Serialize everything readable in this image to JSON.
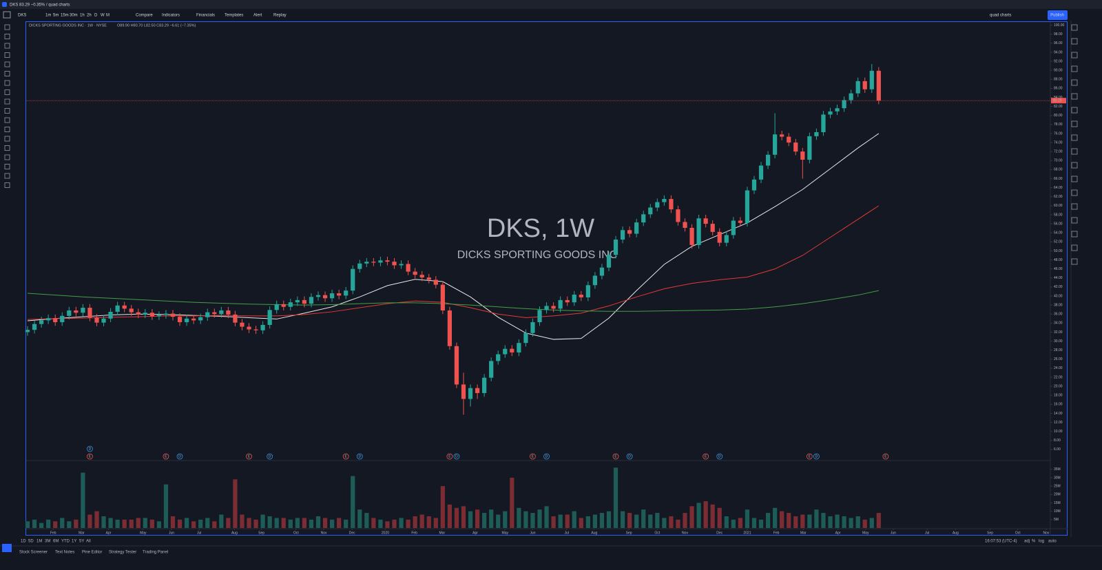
{
  "header": {
    "tab": "DKS 83.29 −0.35% / quad charts",
    "symbol": "DKS",
    "intervals": [
      "1m",
      "5m",
      "15m",
      "30m",
      "1h",
      "2h",
      "D",
      "W",
      "M"
    ],
    "tools": [
      "Compare",
      "Indicators",
      "Financials",
      "Templates",
      "Alert",
      "Replay"
    ],
    "layout": "quad charts",
    "publish": "Publish"
  },
  "footer": {
    "ranges": [
      "1D",
      "5D",
      "1M",
      "3M",
      "6M",
      "YTD",
      "1Y",
      "5Y",
      "All"
    ],
    "clock": "16:07:53 (UTC-4)",
    "scale": [
      "adj",
      "%",
      "log",
      "auto"
    ],
    "tabs": [
      "Stock Screener",
      "Text Notes",
      "Pine Editor",
      "Strategy Tester",
      "Trading Panel"
    ]
  },
  "chart_data": {
    "type": "candlestick",
    "title": "DICKS SPORTING GOODS INC · 1W · NYSE",
    "ohlc_legend": "O89.90 H90.70 L82.50 C83.29 −6.61 (−7.35%)",
    "watermark": "DKS, 1W",
    "watermark_name": "DICKS SPORTING GOODS INC",
    "up_color": "#26a69a",
    "down_color": "#ef5350",
    "open": [
      32.0,
      32.5,
      33.8,
      34.6,
      35.1,
      34.2,
      35.6,
      36.8,
      36.3,
      37.4,
      35.2,
      34.1,
      35.0,
      36.5,
      37.9,
      37.2,
      36.4,
      35.9,
      36.3,
      35.5,
      35.8,
      36.1,
      35.4,
      34.2,
      35.0,
      34.6,
      35.3,
      36.4,
      36.0,
      36.8,
      35.9,
      34.1,
      33.2,
      32.6,
      32.4,
      33.6,
      36.9,
      38.2,
      37.6,
      38.6,
      39.1,
      38.3,
      39.8,
      40.2,
      39.5,
      40.6,
      40.1,
      41.2,
      46.0,
      47.2,
      47.6,
      47.4,
      47.9,
      47.6,
      46.8,
      47.1,
      45.4,
      44.7,
      44.1,
      43.6,
      42.5,
      36.8,
      28.9,
      20.4,
      17.2,
      19.6,
      18.5,
      21.9,
      25.6,
      27.1,
      28.3,
      27.5,
      29.6,
      31.8,
      34.2,
      36.9,
      37.8,
      37.2,
      39.1,
      38.6,
      40.3,
      39.7,
      42.4,
      44.5,
      46.3,
      49.1,
      52.5,
      54.6,
      53.8,
      56.3,
      58.1,
      59.6,
      60.8,
      61.5,
      59.2,
      56.4,
      55.1,
      51.3,
      57.2,
      56.0,
      54.2,
      51.8,
      53.5,
      56.7,
      56.2,
      63.4,
      65.8,
      68.9,
      71.3,
      75.8,
      75.3,
      74.0,
      72.0,
      70.2,
      75.4,
      76.3,
      80.2,
      80.9,
      81.6,
      83.4,
      84.9,
      87.6,
      85.8,
      89.9
    ],
    "high": [
      33.3,
      34.6,
      35.4,
      35.9,
      35.9,
      36.4,
      37.6,
      37.6,
      38.2,
      38.2,
      36.0,
      35.8,
      37.3,
      38.7,
      38.7,
      38.0,
      37.2,
      37.1,
      37.1,
      36.6,
      36.9,
      36.9,
      36.2,
      35.8,
      35.8,
      36.1,
      37.2,
      37.2,
      37.6,
      37.6,
      36.7,
      34.9,
      34.0,
      33.4,
      34.4,
      37.7,
      39.0,
      39.0,
      39.4,
      39.9,
      39.9,
      40.6,
      41.0,
      41.0,
      41.4,
      41.4,
      42.0,
      46.8,
      48.0,
      48.4,
      48.4,
      48.7,
      48.7,
      48.4,
      47.9,
      47.9,
      46.2,
      45.5,
      44.9,
      44.4,
      43.3,
      37.6,
      29.7,
      23.0,
      20.4,
      20.4,
      22.7,
      26.4,
      27.9,
      29.1,
      29.1,
      30.4,
      32.6,
      35.0,
      37.7,
      38.6,
      38.6,
      39.9,
      39.9,
      41.1,
      41.1,
      43.2,
      45.3,
      47.1,
      49.9,
      53.3,
      55.4,
      55.4,
      57.1,
      58.9,
      60.4,
      61.6,
      62.3,
      62.3,
      60.0,
      57.2,
      55.9,
      58.0,
      58.0,
      56.8,
      55.0,
      54.3,
      57.5,
      57.5,
      64.2,
      66.6,
      69.7,
      72.1,
      80.5,
      76.6,
      76.1,
      74.8,
      72.8,
      76.2,
      77.1,
      81.0,
      81.7,
      82.4,
      84.2,
      85.7,
      88.4,
      88.4,
      91.4,
      90.7
    ],
    "low": [
      31.2,
      31.7,
      33.0,
      33.8,
      33.4,
      33.4,
      34.8,
      35.5,
      35.5,
      34.4,
      33.3,
      33.3,
      34.2,
      35.7,
      36.4,
      35.6,
      35.1,
      35.1,
      34.7,
      34.7,
      35.0,
      34.6,
      33.4,
      33.4,
      33.8,
      33.8,
      34.5,
      35.2,
      35.2,
      35.1,
      33.3,
      32.4,
      31.8,
      31.6,
      31.6,
      32.8,
      36.1,
      36.8,
      36.8,
      37.8,
      37.5,
      37.5,
      39.0,
      38.7,
      38.7,
      39.3,
      39.3,
      40.4,
      45.2,
      46.4,
      46.6,
      46.6,
      46.8,
      46.0,
      46.0,
      44.6,
      43.9,
      43.3,
      42.8,
      41.7,
      36.0,
      28.1,
      19.6,
      13.7,
      15.5,
      17.2,
      17.7,
      21.1,
      24.8,
      26.3,
      26.7,
      26.7,
      28.8,
      31.0,
      33.4,
      36.1,
      36.4,
      36.4,
      37.8,
      37.8,
      38.9,
      38.9,
      41.6,
      43.7,
      45.5,
      48.3,
      51.7,
      53.0,
      53.0,
      55.5,
      57.3,
      58.8,
      60.0,
      58.4,
      55.6,
      54.3,
      50.5,
      50.5,
      55.2,
      53.4,
      51.0,
      51.0,
      52.7,
      55.4,
      55.4,
      62.6,
      65.0,
      68.1,
      70.5,
      74.5,
      73.2,
      71.2,
      66.0,
      69.4,
      74.6,
      75.5,
      79.4,
      80.1,
      80.8,
      82.6,
      84.1,
      85.0,
      85.0,
      82.5
    ],
    "close": [
      32.5,
      33.8,
      34.6,
      35.1,
      34.2,
      35.6,
      36.8,
      36.3,
      37.4,
      35.2,
      34.1,
      35.0,
      36.5,
      37.9,
      37.2,
      36.4,
      35.9,
      36.3,
      35.5,
      35.8,
      36.1,
      35.4,
      34.2,
      35.0,
      34.6,
      35.3,
      36.4,
      36.0,
      36.8,
      35.9,
      34.1,
      33.2,
      32.6,
      32.4,
      33.6,
      36.9,
      38.2,
      37.6,
      38.6,
      39.1,
      38.3,
      39.8,
      40.2,
      39.5,
      40.6,
      40.1,
      41.2,
      46.0,
      47.2,
      47.6,
      47.4,
      47.9,
      47.6,
      46.8,
      47.1,
      45.4,
      44.7,
      44.1,
      43.6,
      42.5,
      36.8,
      28.9,
      20.4,
      17.2,
      19.6,
      18.5,
      21.9,
      25.6,
      27.1,
      28.3,
      27.5,
      29.6,
      31.8,
      34.2,
      36.9,
      37.8,
      37.2,
      39.1,
      38.6,
      40.3,
      39.7,
      42.4,
      44.5,
      46.3,
      49.1,
      52.5,
      54.6,
      53.8,
      56.3,
      58.1,
      59.6,
      60.8,
      61.5,
      59.2,
      56.4,
      55.1,
      51.3,
      57.2,
      56.0,
      54.2,
      51.8,
      53.5,
      56.7,
      56.2,
      63.4,
      65.8,
      68.9,
      71.3,
      75.8,
      75.3,
      74.0,
      72.0,
      70.2,
      75.4,
      76.3,
      80.2,
      80.9,
      81.6,
      83.4,
      84.9,
      87.6,
      85.8,
      89.9,
      83.29
    ],
    "ylim": [
      3.7,
      100.7
    ],
    "yticks": [
      {
        "value": 6,
        "label": "6.00"
      },
      {
        "value": 8,
        "label": "8.00"
      },
      {
        "value": 10,
        "label": "10.00"
      },
      {
        "value": 12,
        "label": "12.00"
      },
      {
        "value": 14,
        "label": "14.00"
      },
      {
        "value": 16,
        "label": "16.00"
      },
      {
        "value": 18,
        "label": "18.00"
      },
      {
        "value": 20,
        "label": "20.00"
      },
      {
        "value": 22,
        "label": "22.00"
      },
      {
        "value": 24,
        "label": "24.00"
      },
      {
        "value": 26,
        "label": "26.00"
      },
      {
        "value": 28,
        "label": "28.00"
      },
      {
        "value": 30,
        "label": "30.00"
      },
      {
        "value": 32,
        "label": "32.00"
      },
      {
        "value": 34,
        "label": "34.00"
      },
      {
        "value": 36,
        "label": "36.00"
      },
      {
        "value": 38,
        "label": "38.00"
      },
      {
        "value": 40,
        "label": "40.00"
      },
      {
        "value": 42,
        "label": "42.00"
      },
      {
        "value": 44,
        "label": "44.00"
      },
      {
        "value": 46,
        "label": "46.00"
      },
      {
        "value": 48,
        "label": "48.00"
      },
      {
        "value": 50,
        "label": "50.00"
      },
      {
        "value": 52,
        "label": "52.00"
      },
      {
        "value": 54,
        "label": "54.00"
      },
      {
        "value": 56,
        "label": "56.00"
      },
      {
        "value": 58,
        "label": "58.00"
      },
      {
        "value": 60,
        "label": "60.00"
      },
      {
        "value": 62,
        "label": "62.00"
      },
      {
        "value": 64,
        "label": "64.00"
      },
      {
        "value": 66,
        "label": "66.00"
      },
      {
        "value": 68,
        "label": "68.00"
      },
      {
        "value": 70,
        "label": "70.00"
      },
      {
        "value": 72,
        "label": "72.00"
      },
      {
        "value": 74,
        "label": "74.00"
      },
      {
        "value": 76,
        "label": "76.00"
      },
      {
        "value": 78,
        "label": "78.00"
      },
      {
        "value": 80,
        "label": "80.00"
      },
      {
        "value": 82,
        "label": "82.00"
      },
      {
        "value": 84,
        "label": "84.00"
      },
      {
        "value": 86,
        "label": "86.00"
      },
      {
        "value": 88,
        "label": "88.00"
      },
      {
        "value": 90,
        "label": "90.00"
      },
      {
        "value": 92,
        "label": "92.00"
      },
      {
        "value": 94,
        "label": "94.00"
      },
      {
        "value": 96,
        "label": "96.00"
      },
      {
        "value": 98,
        "label": "98.00"
      },
      {
        "value": 100,
        "label": "100.00"
      }
    ],
    "xlim": [
      -0.2,
      147.8
    ],
    "xticks": [
      {
        "value": 3.7,
        "label": "Feb"
      },
      {
        "value": 7.8,
        "label": "Mar"
      },
      {
        "value": 11.7,
        "label": "Apr"
      },
      {
        "value": 16.7,
        "label": "May"
      },
      {
        "value": 20.8,
        "label": "Jun"
      },
      {
        "value": 24.8,
        "label": "Jul"
      },
      {
        "value": 29.9,
        "label": "Aug"
      },
      {
        "value": 33.8,
        "label": "Sep"
      },
      {
        "value": 38.8,
        "label": "Oct"
      },
      {
        "value": 42.8,
        "label": "Nov"
      },
      {
        "value": 46.9,
        "label": "Dec"
      },
      {
        "value": 51.7,
        "label": "2020"
      },
      {
        "value": 55.9,
        "label": "Feb"
      },
      {
        "value": 59.9,
        "label": "Mar"
      },
      {
        "value": 64.7,
        "label": "Apr"
      },
      {
        "value": 69.0,
        "label": "May"
      },
      {
        "value": 73.0,
        "label": "Jun"
      },
      {
        "value": 77.9,
        "label": "Jul"
      },
      {
        "value": 81.9,
        "label": "Aug"
      },
      {
        "value": 86.9,
        "label": "Sep"
      },
      {
        "value": 91.0,
        "label": "Oct"
      },
      {
        "value": 95.0,
        "label": "Nov"
      },
      {
        "value": 100.0,
        "label": "Dec"
      },
      {
        "value": 104.0,
        "label": "2021"
      },
      {
        "value": 108.2,
        "label": "Feb"
      },
      {
        "value": 112.1,
        "label": "Mar"
      },
      {
        "value": 117.1,
        "label": "Apr"
      },
      {
        "value": 121.1,
        "label": "May"
      },
      {
        "value": 125.1,
        "label": "Jun"
      },
      {
        "value": 130.0,
        "label": "Jul"
      },
      {
        "value": 134.1,
        "label": "Aug"
      },
      {
        "value": 139.1,
        "label": "Sep"
      },
      {
        "value": 143.1,
        "label": "Oct"
      },
      {
        "value": 147.2,
        "label": "Nov"
      }
    ],
    "moving_averages": {
      "weeks": [
        0,
        4,
        8,
        12,
        16,
        20,
        24,
        28,
        32,
        36,
        40,
        44,
        48,
        52,
        56,
        60,
        64,
        68,
        72,
        76,
        80,
        84,
        88,
        92,
        96,
        100,
        104,
        108,
        112,
        116,
        120,
        123
      ],
      "series": [
        {
          "color": "#e8e8e8",
          "values": [
            34.5,
            35.0,
            35.4,
            35.8,
            36.0,
            35.9,
            35.7,
            35.5,
            35.2,
            34.9,
            36.2,
            37.6,
            39.8,
            42.3,
            43.7,
            43.2,
            39.8,
            35.3,
            31.8,
            30.4,
            30.6,
            35.1,
            41.2,
            47.0,
            51.0,
            53.6,
            56.2,
            59.8,
            63.6,
            68.2,
            72.8,
            76.0
          ]
        },
        {
          "color": "#e53935",
          "values": [
            34.8,
            35.0,
            35.1,
            35.3,
            35.4,
            35.6,
            35.6,
            35.7,
            35.6,
            35.6,
            35.9,
            36.5,
            37.4,
            38.3,
            38.9,
            38.6,
            37.4,
            36.0,
            35.2,
            35.6,
            36.2,
            37.8,
            39.8,
            41.6,
            42.8,
            43.6,
            44.2,
            46.0,
            49.0,
            53.0,
            57.0,
            60.0
          ]
        },
        {
          "color": "#43a047",
          "values": [
            40.6,
            40.2,
            39.8,
            39.5,
            39.2,
            38.9,
            38.6,
            38.4,
            38.2,
            38.1,
            38.0,
            38.1,
            38.3,
            38.5,
            38.5,
            38.3,
            38.0,
            37.6,
            37.2,
            36.9,
            36.7,
            36.6,
            36.6,
            36.7,
            36.8,
            36.9,
            37.1,
            37.6,
            38.3,
            39.2,
            40.2,
            41.2
          ]
        }
      ]
    },
    "volume": {
      "up_color": "#1e5c58",
      "down_color": "#7b2d33",
      "ylim": [
        0,
        39
      ],
      "yticks": [
        {
          "value": 5,
          "label": "5M"
        },
        {
          "value": 10,
          "label": "10M"
        },
        {
          "value": 15,
          "label": "15M"
        },
        {
          "value": 20,
          "label": "20M"
        },
        {
          "value": 25,
          "label": "25M"
        },
        {
          "value": 30,
          "label": "30M"
        },
        {
          "value": 35,
          "label": "35M"
        }
      ],
      "values": [
        4,
        5,
        3,
        5,
        4,
        6,
        4,
        5,
        33,
        8,
        10,
        7,
        6,
        5,
        5,
        5,
        6,
        6,
        5,
        4,
        26,
        7,
        5,
        6,
        4,
        5,
        6,
        4,
        8,
        6,
        29,
        8,
        6,
        5,
        8,
        7,
        6,
        6,
        5,
        6,
        6,
        5,
        7,
        6,
        5,
        6,
        5,
        31,
        11,
        9,
        6,
        5,
        4,
        5,
        6,
        5,
        7,
        8,
        7,
        6,
        25,
        14,
        12,
        13,
        10,
        11,
        9,
        11,
        8,
        10,
        30,
        12,
        10,
        9,
        11,
        13,
        7,
        8,
        8,
        10,
        6,
        7,
        8,
        9,
        10,
        36,
        10,
        9,
        8,
        11,
        8,
        9,
        6,
        7,
        5,
        9,
        13,
        15,
        16,
        14,
        12,
        7,
        5,
        6,
        11,
        6,
        5,
        9,
        12,
        10,
        9,
        7,
        8,
        8,
        11,
        9,
        7,
        8,
        7,
        6,
        7,
        5,
        6,
        9
      ]
    },
    "events": [
      {
        "week": 9,
        "label": "E"
      },
      {
        "week": 9,
        "label": "D"
      },
      {
        "week": 20,
        "label": "E"
      },
      {
        "week": 22,
        "label": "D"
      },
      {
        "week": 32,
        "label": "E"
      },
      {
        "week": 35,
        "label": "D"
      },
      {
        "week": 46,
        "label": "E"
      },
      {
        "week": 48,
        "label": "D"
      },
      {
        "week": 61,
        "label": "E"
      },
      {
        "week": 62,
        "label": "D"
      },
      {
        "week": 73,
        "label": "E"
      },
      {
        "week": 75,
        "label": "D"
      },
      {
        "week": 85,
        "label": "E"
      },
      {
        "week": 87,
        "label": "D"
      },
      {
        "week": 98,
        "label": "E"
      },
      {
        "week": 100,
        "label": "D"
      },
      {
        "week": 113,
        "label": "E"
      },
      {
        "week": 114,
        "label": "D"
      },
      {
        "week": 124,
        "label": "E"
      }
    ]
  }
}
